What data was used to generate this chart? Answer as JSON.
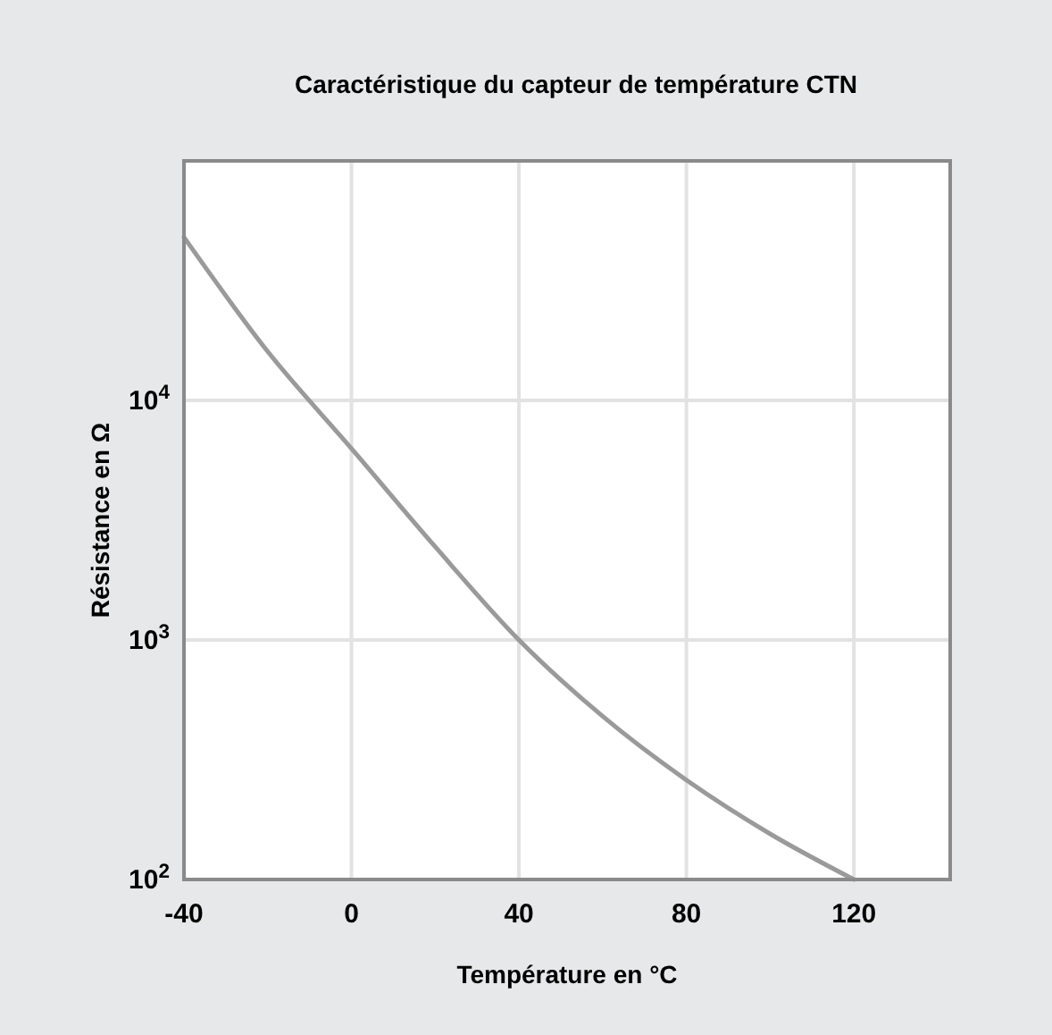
{
  "chart_data": {
    "type": "line",
    "title": "Caractéristique du capteur de température CTN",
    "xlabel": "Température en °C",
    "ylabel": "Résistance en Ω",
    "x": [
      -40,
      -20,
      0,
      20,
      40,
      60,
      80,
      100,
      120
    ],
    "series": [
      {
        "color": "#9a9a9a",
        "values": [
          48000,
          16000,
          6300,
          2450,
          1000,
          480,
          260,
          155,
          100
        ]
      }
    ],
    "xlim": [
      -40,
      143
    ],
    "xticks": [
      -40,
      0,
      40,
      80,
      120
    ],
    "ylim": [
      100,
      100000
    ],
    "yticks": [
      {
        "value": 100,
        "label": "10$^{2}$"
      },
      {
        "value": 1000,
        "label": "10$^{3}$"
      },
      {
        "value": 10000,
        "label": "10$^{4}$"
      },
      {
        "value": 100000,
        "label": null
      }
    ],
    "log": "y",
    "grid": true,
    "marker": "none",
    "line_style": "solid"
  }
}
